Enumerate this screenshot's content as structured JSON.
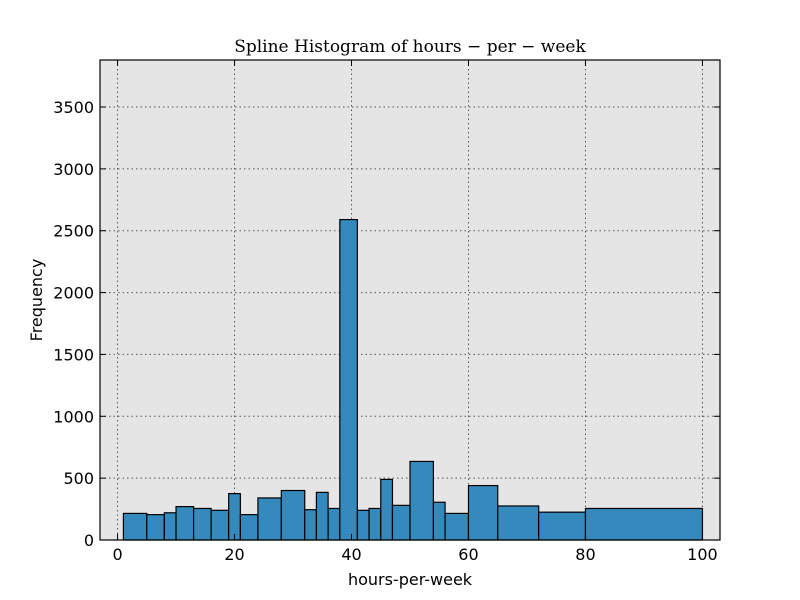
{
  "chart_data": {
    "type": "bar",
    "title": "Spline Histogram of hours − per − week",
    "xlabel": "hours-per-week",
    "ylabel": "Frequency",
    "xlim": [
      -3,
      103
    ],
    "ylim": [
      0,
      3880
    ],
    "xticks": [
      0,
      20,
      40,
      60,
      80,
      100
    ],
    "yticks": [
      0,
      500,
      1000,
      1500,
      2000,
      2500,
      3000,
      3500
    ],
    "grid": true,
    "background_color": "#e5e5e5",
    "bar_color": "#348abd",
    "bins": [
      {
        "x0": 1,
        "x1": 5,
        "value": 215
      },
      {
        "x0": 5,
        "x1": 8,
        "value": 205
      },
      {
        "x0": 8,
        "x1": 10,
        "value": 220
      },
      {
        "x0": 10,
        "x1": 13,
        "value": 270
      },
      {
        "x0": 13,
        "x1": 16,
        "value": 255
      },
      {
        "x0": 16,
        "x1": 19,
        "value": 240
      },
      {
        "x0": 19,
        "x1": 21,
        "value": 375
      },
      {
        "x0": 21,
        "x1": 24,
        "value": 205
      },
      {
        "x0": 24,
        "x1": 28,
        "value": 340
      },
      {
        "x0": 28,
        "x1": 32,
        "value": 400
      },
      {
        "x0": 32,
        "x1": 34,
        "value": 245
      },
      {
        "x0": 34,
        "x1": 36,
        "value": 385
      },
      {
        "x0": 36,
        "x1": 38,
        "value": 255
      },
      {
        "x0": 38,
        "x1": 41,
        "value": 2590
      },
      {
        "x0": 41,
        "x1": 43,
        "value": 240
      },
      {
        "x0": 43,
        "x1": 45,
        "value": 255
      },
      {
        "x0": 45,
        "x1": 47,
        "value": 490
      },
      {
        "x0": 47,
        "x1": 50,
        "value": 280
      },
      {
        "x0": 50,
        "x1": 54,
        "value": 635
      },
      {
        "x0": 54,
        "x1": 56,
        "value": 305
      },
      {
        "x0": 56,
        "x1": 60,
        "value": 215
      },
      {
        "x0": 60,
        "x1": 65,
        "value": 440
      },
      {
        "x0": 65,
        "x1": 72,
        "value": 275
      },
      {
        "x0": 72,
        "x1": 80,
        "value": 225
      },
      {
        "x0": 80,
        "x1": 100,
        "value": 255
      }
    ]
  }
}
